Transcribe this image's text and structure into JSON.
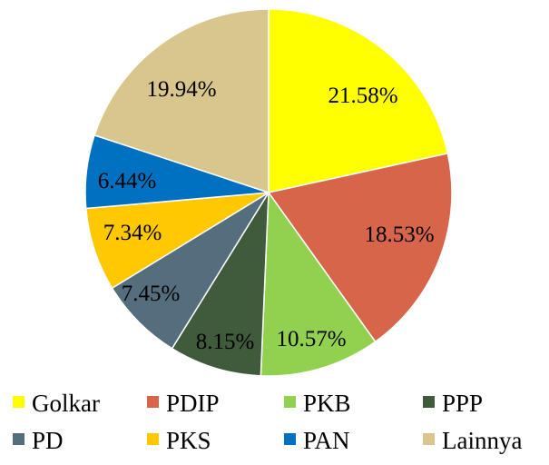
{
  "chart_data": {
    "type": "pie",
    "title": "",
    "start": "top",
    "direction": "clockwise",
    "legend_position": "bottom",
    "slices": [
      {
        "name": "Golkar",
        "value": 21.58,
        "label": "21.58%",
        "color": "#FFFF00"
      },
      {
        "name": "PDIP",
        "value": 18.53,
        "label": "18.53%",
        "color": "#D6654A"
      },
      {
        "name": "PKB",
        "value": 10.57,
        "label": "10.57%",
        "color": "#92D050"
      },
      {
        "name": "PPP",
        "value": 8.15,
        "label": "8.15%",
        "color": "#3F5B3C"
      },
      {
        "name": "PD",
        "value": 7.45,
        "label": "7.45%",
        "color": "#546E7E"
      },
      {
        "name": "PKS",
        "value": 7.34,
        "label": "7.34%",
        "color": "#FFC800"
      },
      {
        "name": "PAN",
        "value": 6.44,
        "label": "6.44%",
        "color": "#0070C0"
      },
      {
        "name": "Lainnya",
        "value": 19.94,
        "label": "19.94%",
        "color": "#D9C68C"
      }
    ]
  }
}
